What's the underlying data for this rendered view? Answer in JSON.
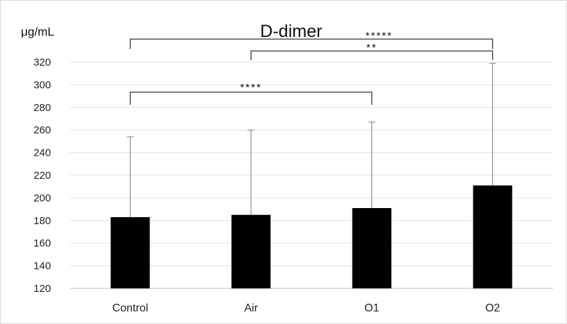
{
  "chart_data": {
    "type": "bar",
    "title": "D-dimer",
    "ylabel": "μg/mL",
    "xlabel": "",
    "categories": [
      "Control",
      "Air",
      "O1",
      "O2"
    ],
    "values": [
      183,
      185,
      191,
      211
    ],
    "error_upper": [
      254,
      260,
      267,
      319
    ],
    "ylim": [
      120,
      320
    ],
    "yticks": [
      120,
      140,
      160,
      180,
      200,
      220,
      240,
      260,
      280,
      300,
      320
    ],
    "grid": true,
    "bar_color": "#000000",
    "significance": [
      {
        "from": "Control",
        "to": "O2",
        "label": "*****"
      },
      {
        "from": "Air",
        "to": "O2",
        "label": "**"
      },
      {
        "from": "Control",
        "to": "O1",
        "label": "****"
      }
    ]
  }
}
